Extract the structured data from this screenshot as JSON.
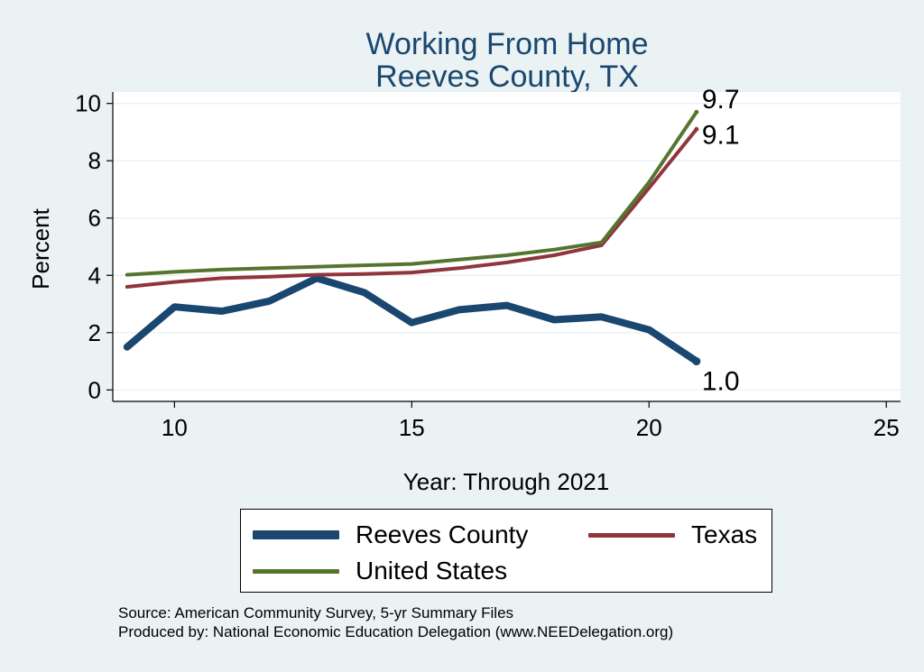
{
  "colors": {
    "background": "#eaf2f3",
    "plot_background": "#ffffff",
    "grid": "#eaf2f3",
    "title": "#1a476f"
  },
  "chart_data": {
    "type": "line",
    "title_lines": [
      "Working From Home",
      "Reeves County, TX"
    ],
    "xlabel": "Year: Through 2021",
    "ylabel": "Percent",
    "xlim": [
      8.7,
      25.3
    ],
    "ylim": [
      -0.4,
      10.4
    ],
    "x_ticks": [
      10,
      15,
      20,
      25
    ],
    "y_ticks": [
      0,
      2,
      4,
      6,
      8,
      10
    ],
    "grid": true,
    "legend_position": "bottom",
    "series": [
      {
        "name": "Reeves County",
        "color": "#1a476f",
        "width": 8,
        "x": [
          9,
          10,
          11,
          12,
          13,
          14,
          15,
          16,
          17,
          18,
          19,
          20,
          21
        ],
        "y": [
          1.5,
          2.9,
          2.75,
          3.1,
          3.9,
          3.4,
          2.35,
          2.8,
          2.95,
          2.45,
          2.55,
          2.1,
          1.0
        ],
        "end_label": "1.0"
      },
      {
        "name": "Texas",
        "color": "#90353b",
        "width": 4,
        "x": [
          9,
          10,
          11,
          12,
          13,
          14,
          15,
          16,
          17,
          18,
          19,
          20,
          21
        ],
        "y": [
          3.6,
          3.77,
          3.9,
          3.95,
          4.02,
          4.05,
          4.1,
          4.25,
          4.45,
          4.7,
          5.05,
          7.05,
          9.1
        ],
        "end_label": "9.1"
      },
      {
        "name": "United States",
        "color": "#55752f",
        "width": 4,
        "x": [
          9,
          10,
          11,
          12,
          13,
          14,
          15,
          16,
          17,
          18,
          19,
          20,
          21
        ],
        "y": [
          4.02,
          4.12,
          4.2,
          4.25,
          4.3,
          4.35,
          4.4,
          4.55,
          4.7,
          4.9,
          5.15,
          7.25,
          9.7
        ],
        "end_label": "9.7"
      }
    ]
  },
  "legend": {
    "items": [
      "Reeves County",
      "Texas",
      "United States"
    ]
  },
  "notes": {
    "source": "Source: American Community Survey, 5-yr Summary Files",
    "produced_by": "Produced by: National Economic Education Delegation (www.NEEDelegation.org)"
  }
}
